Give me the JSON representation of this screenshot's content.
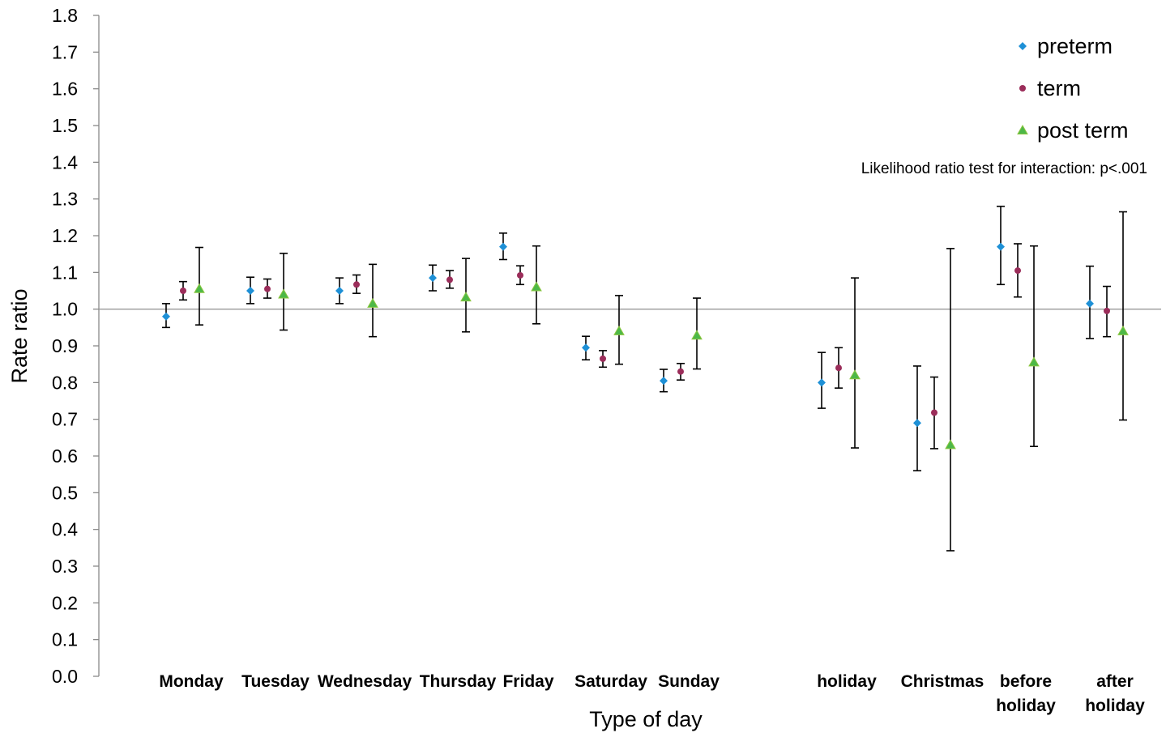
{
  "chart_data": {
    "type": "scatter",
    "title": "",
    "xlabel": "Type of day",
    "ylabel": "Rate ratio",
    "ylim": [
      0.0,
      1.8
    ],
    "ytick_step": 0.1,
    "yticks": [
      "0.0",
      "0.1",
      "0.2",
      "0.3",
      "0.4",
      "0.5",
      "0.6",
      "0.7",
      "0.8",
      "0.9",
      "1.0",
      "1.1",
      "1.2",
      "1.3",
      "1.4",
      "1.5",
      "1.6",
      "1.7",
      "1.8"
    ],
    "reference_line": 1.0,
    "grid": false,
    "legend_position": "top-right",
    "annotation": "Likelihood ratio test for interaction: p<.001",
    "categories": [
      [
        "Monday"
      ],
      [
        "Tuesday"
      ],
      [
        "Wednesday"
      ],
      [
        "Thursday"
      ],
      [
        "Friday"
      ],
      [
        "Saturday"
      ],
      [
        "Sunday"
      ],
      [
        "holiday"
      ],
      [
        "Christmas"
      ],
      [
        "before",
        "holiday"
      ],
      [
        "after",
        "holiday"
      ]
    ],
    "series": [
      {
        "name": "preterm",
        "marker": "diamond",
        "color": "#1E90D6",
        "values": [
          0.98,
          1.05,
          1.05,
          1.085,
          1.17,
          0.895,
          0.805,
          0.8,
          0.69,
          1.17,
          1.015
        ],
        "ci_low": [
          0.95,
          1.015,
          1.015,
          1.05,
          1.135,
          0.862,
          0.775,
          0.73,
          0.56,
          1.067,
          0.92
        ],
        "ci_high": [
          1.015,
          1.087,
          1.085,
          1.12,
          1.207,
          0.926,
          0.836,
          0.882,
          0.845,
          1.28,
          1.117
        ]
      },
      {
        "name": "term",
        "marker": "circle",
        "color": "#9B2D5A",
        "values": [
          1.05,
          1.055,
          1.067,
          1.08,
          1.092,
          0.865,
          0.83,
          0.84,
          0.718,
          1.105,
          0.995
        ],
        "ci_low": [
          1.025,
          1.03,
          1.043,
          1.057,
          1.067,
          0.842,
          0.807,
          0.785,
          0.62,
          1.033,
          0.925
        ],
        "ci_high": [
          1.075,
          1.082,
          1.093,
          1.105,
          1.118,
          0.887,
          0.852,
          0.895,
          0.815,
          1.178,
          1.062
        ]
      },
      {
        "name": "post term",
        "marker": "triangle",
        "color": "#4DB848",
        "edge_color": "#8CC63F",
        "values": [
          1.055,
          1.04,
          1.015,
          1.032,
          1.06,
          0.94,
          0.928,
          0.82,
          0.63,
          0.855,
          0.94
        ],
        "ci_low": [
          0.957,
          0.943,
          0.925,
          0.938,
          0.96,
          0.85,
          0.837,
          0.622,
          0.342,
          0.626,
          0.698
        ],
        "ci_high": [
          1.168,
          1.152,
          1.122,
          1.138,
          1.172,
          1.037,
          1.03,
          1.085,
          1.165,
          1.172,
          1.265
        ]
      }
    ]
  }
}
